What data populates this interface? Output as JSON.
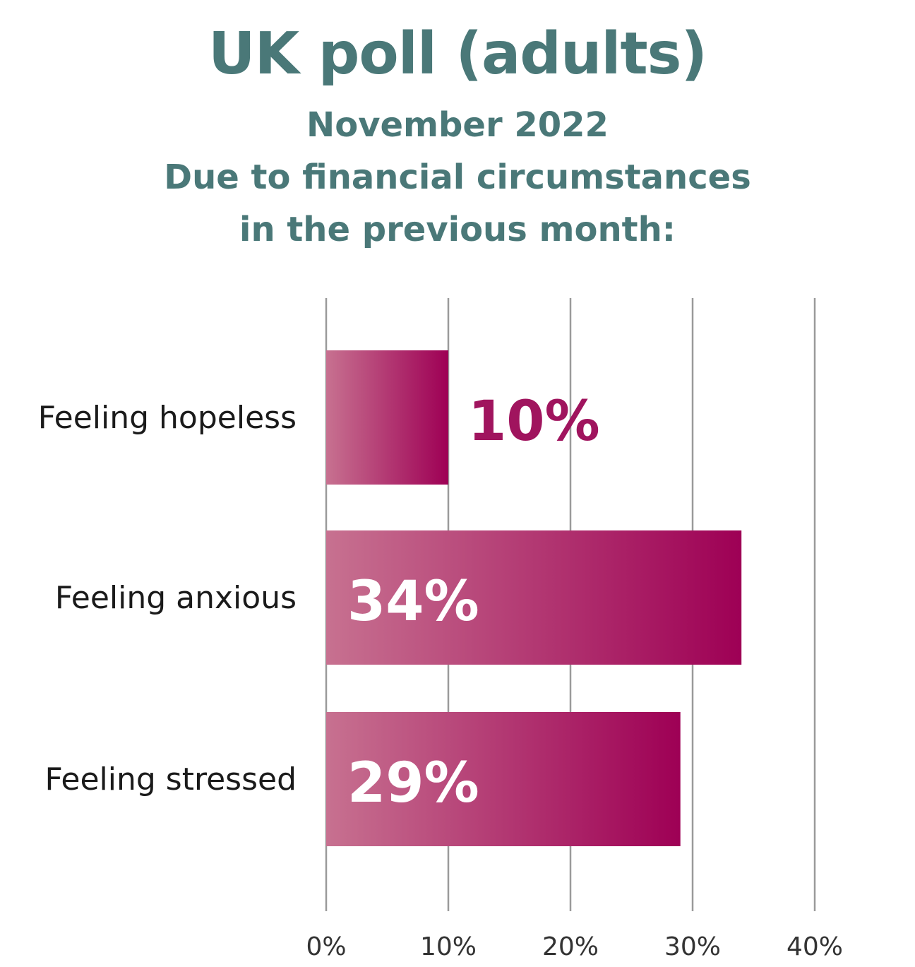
{
  "title": "UK poll (adults)",
  "subtitle_lines": [
    "November 2022",
    "Due to financial circumstances",
    "in the previous month:"
  ],
  "colors": {
    "title": "#4a7878",
    "bar_start": "#c77190",
    "bar_end": "#9e0055",
    "value_outside": "#a0145e",
    "value_inside": "#ffffff",
    "grid": "#9a9a9a"
  },
  "chart_data": {
    "type": "bar",
    "orientation": "horizontal",
    "categories": [
      "Feeling hopeless",
      "Feeling anxious",
      "Feeling stressed"
    ],
    "values": [
      10,
      34,
      29
    ],
    "data_labels": [
      "10%",
      "34%",
      "29%"
    ],
    "xlim": [
      0,
      40
    ],
    "ticks": [
      0,
      10,
      20,
      30,
      40
    ],
    "tick_labels": [
      "0%",
      "10%",
      "20%",
      "30%",
      "40%"
    ],
    "grid": true,
    "legend": "none"
  }
}
